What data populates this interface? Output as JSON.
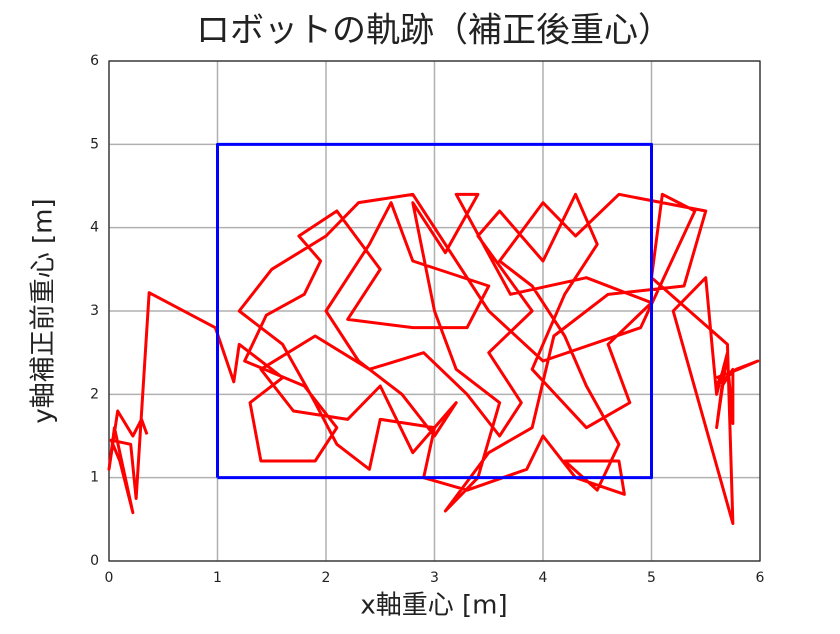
{
  "chart_data": {
    "type": "line",
    "title": "ロボットの軌跡（補正後重心）",
    "x_label": "x軸重心 [m]",
    "y_label": "y軸補正前重心 [m]",
    "xlim": [
      0,
      6
    ],
    "ylim": [
      0,
      6
    ],
    "xticks": [
      0,
      1,
      2,
      3,
      4,
      5,
      6
    ],
    "yticks": [
      0,
      1,
      2,
      3,
      4,
      5,
      6
    ],
    "grid": true,
    "series": [
      {
        "color": "#ff0000",
        "x": [
          0.35,
          0.3,
          0.22,
          0.08,
          0.0,
          0.05,
          0.22,
          0.1,
          0.02,
          0.2,
          0.25,
          0.37,
          0.98,
          1.15,
          1.2,
          1.6,
          1.3,
          1.4,
          1.9,
          2.1,
          1.8,
          1.25,
          1.45,
          1.8,
          1.95,
          1.75,
          2.1,
          2.5,
          2.2,
          2.8,
          3.3,
          3.5,
          2.8,
          2.6,
          2.4,
          2.0,
          2.3,
          2.7,
          3.0,
          3.2,
          2.8,
          2.5,
          2.2,
          1.7,
          1.4,
          1.9,
          2.4,
          2.9,
          3.3,
          3.6,
          3.8,
          3.5,
          3.9,
          3.4,
          3.6,
          4.0,
          4.3,
          4.5,
          4.2,
          3.9,
          4.4,
          4.8,
          4.6,
          5.0,
          4.4,
          3.7,
          3.2,
          3.4,
          3.1,
          2.8,
          3.0,
          3.2,
          3.6,
          3.4,
          3.1,
          3.5,
          3.9,
          4.1,
          4.6,
          5.3,
          5.5,
          4.7,
          4.3,
          4.0,
          3.6,
          3.9,
          4.2,
          4.4,
          4.7,
          4.5,
          4.2,
          4.7,
          4.75,
          4.3,
          4.0,
          3.85,
          3.3,
          2.9,
          3.0,
          2.5,
          2.4,
          2.1,
          1.9,
          1.6,
          1.2,
          1.5,
          2.0,
          2.3,
          2.8,
          3.5,
          4.0,
          4.9,
          5.4,
          5.1,
          5.0,
          5.7,
          5.75,
          5.2,
          5.5,
          5.6,
          5.7,
          5.6,
          5.65,
          5.75,
          5.75,
          5.7,
          5.6,
          5.78,
          5.98,
          5.8,
          5.6
        ],
        "values": [
          1.52,
          1.7,
          1.5,
          1.8,
          1.1,
          1.6,
          0.58,
          1.2,
          1.45,
          1.4,
          0.75,
          3.22,
          2.8,
          2.15,
          2.6,
          2.2,
          1.9,
          1.2,
          1.2,
          1.6,
          2.1,
          2.4,
          2.95,
          3.2,
          3.6,
          3.9,
          4.2,
          3.5,
          2.9,
          2.8,
          2.8,
          3.3,
          3.6,
          4.3,
          3.8,
          3.0,
          2.4,
          2.0,
          1.5,
          1.9,
          1.3,
          2.1,
          1.7,
          1.8,
          2.3,
          2.7,
          2.3,
          2.5,
          2.0,
          1.5,
          1.9,
          2.5,
          3.0,
          3.9,
          4.2,
          3.6,
          4.4,
          3.8,
          3.2,
          2.3,
          1.6,
          1.9,
          2.6,
          3.1,
          3.4,
          3.2,
          4.4,
          4.4,
          3.7,
          4.3,
          3.0,
          2.3,
          1.9,
          1.0,
          0.6,
          1.3,
          1.6,
          2.7,
          3.2,
          3.3,
          4.2,
          4.4,
          3.9,
          4.3,
          3.6,
          3.3,
          2.7,
          2.1,
          1.4,
          0.85,
          1.2,
          1.2,
          0.8,
          1.0,
          1.5,
          1.1,
          0.85,
          1.0,
          1.6,
          1.7,
          1.1,
          1.4,
          1.9,
          2.6,
          3.0,
          3.5,
          3.9,
          4.3,
          4.4,
          3.0,
          2.4,
          2.8,
          4.2,
          4.4,
          3.4,
          2.6,
          0.45,
          3.0,
          3.4,
          2.0,
          2.5,
          1.6,
          2.1,
          2.3,
          1.65,
          2.4,
          2.1,
          2.3,
          2.4,
          2.3,
          2.2
        ]
      },
      {
        "color": "#0000ff",
        "x": [
          1,
          5,
          5,
          1,
          1
        ],
        "values": [
          1,
          1,
          5,
          5,
          1
        ]
      }
    ]
  }
}
